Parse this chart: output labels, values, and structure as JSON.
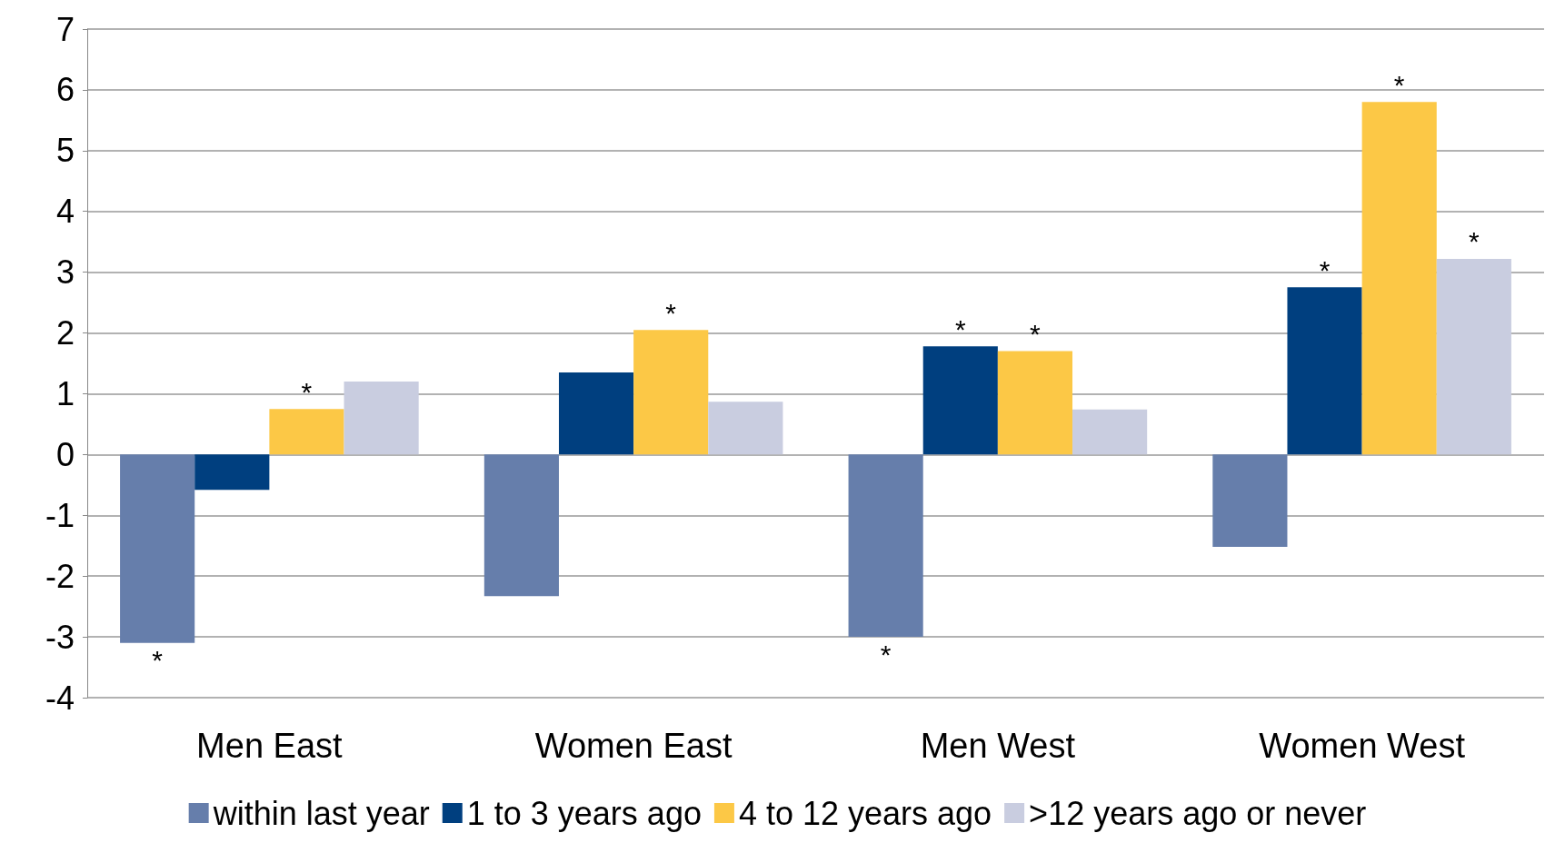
{
  "chart_data": {
    "type": "bar",
    "categories": [
      "Men East",
      "Women East",
      "Men West",
      "Women West"
    ],
    "series": [
      {
        "name": "within last year",
        "color": "#667eab",
        "values": [
          -3.1,
          -2.33,
          -3.0,
          -1.52
        ],
        "value_labels": [
          "*",
          null,
          "*",
          null
        ]
      },
      {
        "name": "1 to 3 years ago",
        "color": "#003f7f",
        "values": [
          -0.58,
          1.35,
          1.78,
          2.75
        ],
        "value_labels": [
          null,
          null,
          "*",
          "*"
        ]
      },
      {
        "name": "4 to 12 years ago",
        "color": "#fcc846",
        "values": [
          0.75,
          2.05,
          1.7,
          5.8
        ],
        "value_labels": [
          "*",
          "*",
          "*",
          "*"
        ]
      },
      {
        "name": ">12 years ago or never",
        "color": "#c9cde0",
        "values": [
          1.2,
          0.87,
          0.74,
          3.22
        ],
        "value_labels": [
          null,
          null,
          null,
          "*"
        ]
      }
    ],
    "ylim": [
      -4,
      7
    ],
    "yticks": [
      -4,
      -3,
      -2,
      -1,
      0,
      1,
      2,
      3,
      4,
      5,
      6,
      7
    ],
    "grid": "y",
    "legend": "bottom"
  }
}
